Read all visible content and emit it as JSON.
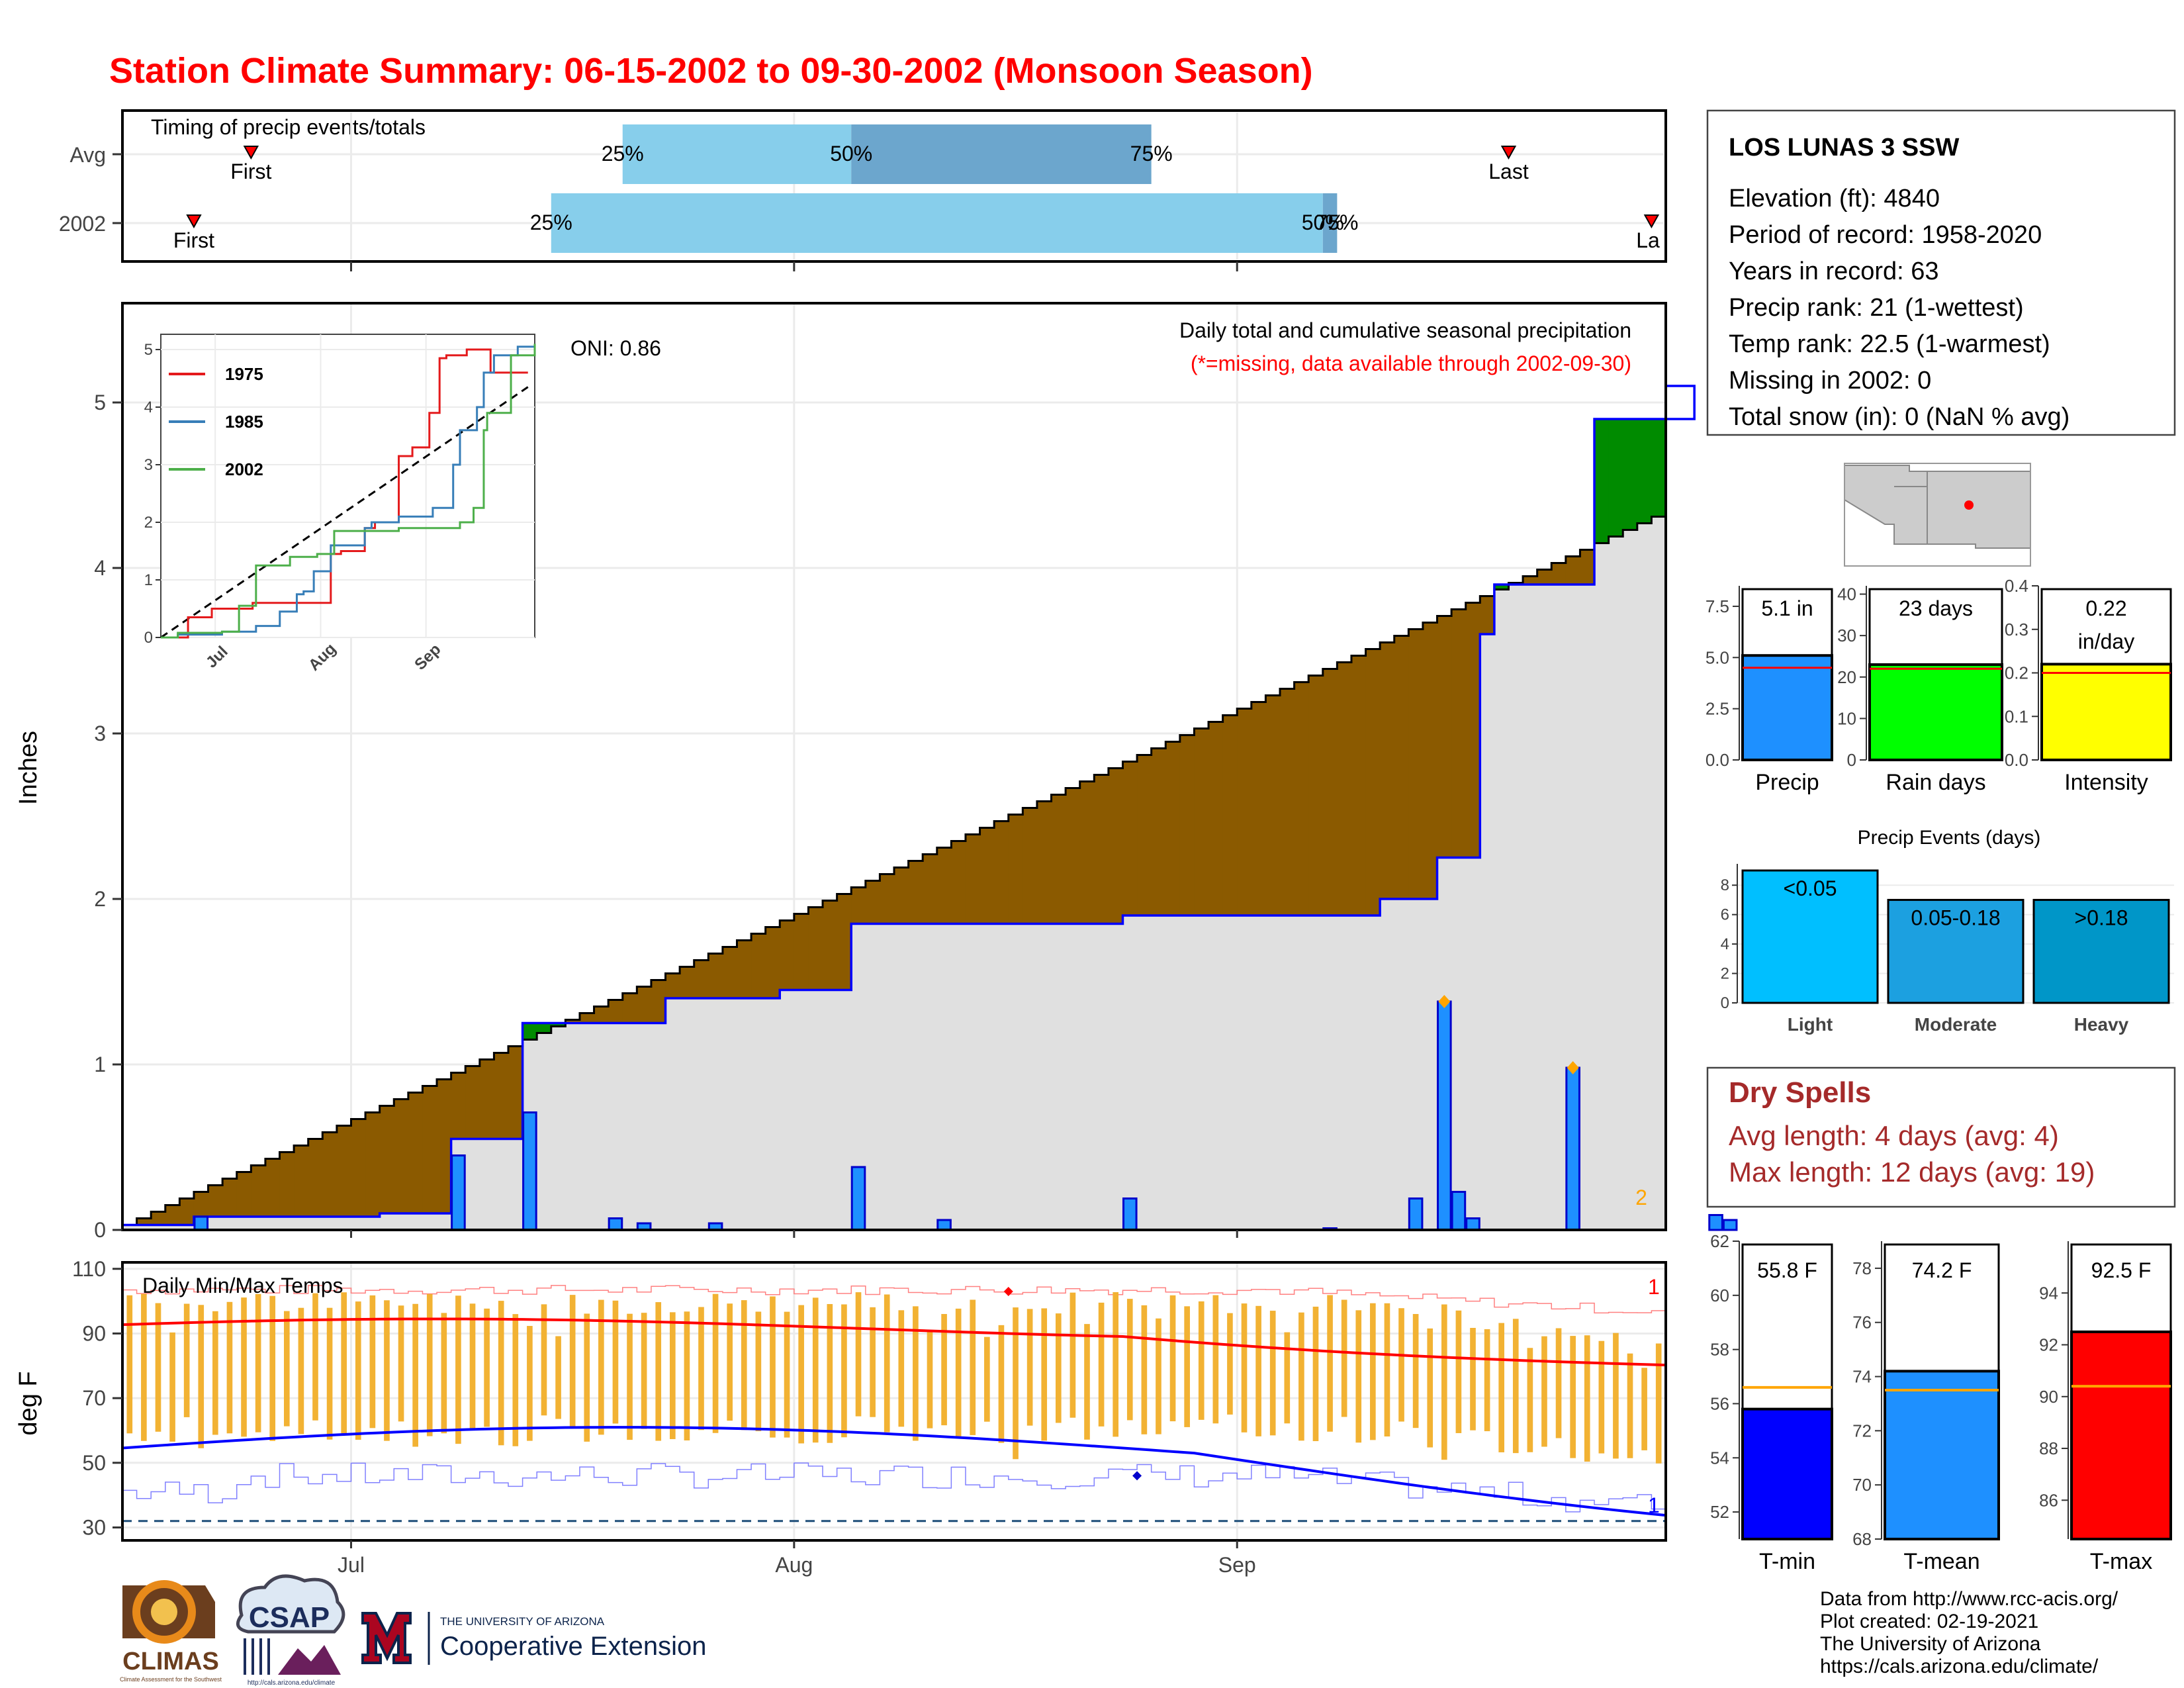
{
  "title": "Station Climate Summary: 06-15-2002 to 09-30-2002 (Monsoon Season)",
  "colors": {
    "title": "#ff0000",
    "precip_bar": "#1e90ff",
    "above": "#008b00",
    "below": "#8b5a00",
    "avg_fill": "#e0e0e0",
    "tmax": "#ff0000",
    "tmin": "#0000ff",
    "range_bar": "#f2b233",
    "dry": "#a52a2a"
  },
  "timing": {
    "label": "Timing of precip events/totals",
    "rows": [
      {
        "name": "Avg",
        "first_label": "First",
        "first_day": 9,
        "last_label": "Last",
        "last_day": 97,
        "q25_day": 35,
        "q50_day": 51,
        "q75_day": 72,
        "q25_label": "25%",
        "q50_label": "50%",
        "q75_label": "75%"
      },
      {
        "name": "2002",
        "first_label": "First",
        "first_day": 5,
        "last_label": "La",
        "last_day": 107,
        "q25_day": 30,
        "q50_day": 84,
        "q75_day": 85,
        "q25_label": "25%",
        "q50_label": "50%",
        "q75_label": "75%"
      }
    ]
  },
  "station": {
    "name": "LOS LUNAS 3 SSW",
    "lines": [
      "Elevation (ft): 4840",
      "Period of record: 1958-2020",
      "Years in record: 63",
      "Precip rank: 21 (1-wettest)",
      "Temp rank: 22.5 (1-warmest)",
      "Missing in 2002: 0",
      "Total snow (in): 0 (NaN % avg)"
    ]
  },
  "precip_panel": {
    "note1": "Daily total and cumulative seasonal precipitation",
    "note2": "(*=missing, data available through 2002-09-30)",
    "oni": "ONI: 0.86",
    "ylabel": "Inches",
    "y_ticks": [
      0,
      1,
      2,
      3,
      4,
      5
    ],
    "ylim": [
      0,
      5.6
    ],
    "corner_label": "2",
    "cum_avg_end": 4.35,
    "cum_2002_steps": [
      [
        0,
        0.03
      ],
      [
        5,
        0.08
      ],
      [
        18,
        0.1
      ],
      [
        23,
        0.55
      ],
      [
        28,
        1.25
      ],
      [
        38,
        1.4
      ],
      [
        46,
        1.45
      ],
      [
        51,
        1.85
      ],
      [
        70,
        1.9
      ],
      [
        88,
        2.0
      ],
      [
        92,
        2.25
      ],
      [
        95,
        3.6
      ],
      [
        96,
        3.9
      ],
      [
        103,
        4.9
      ],
      [
        110,
        5.1
      ]
    ],
    "daily_bars": [
      [
        5,
        0.08
      ],
      [
        23,
        0.45
      ],
      [
        28,
        0.71
      ],
      [
        34,
        0.07
      ],
      [
        36,
        0.04
      ],
      [
        41,
        0.04
      ],
      [
        51,
        0.38
      ],
      [
        57,
        0.06
      ],
      [
        70,
        0.19
      ],
      [
        84,
        0.01
      ],
      [
        90,
        0.19
      ],
      [
        92,
        1.38
      ],
      [
        93,
        0.23
      ],
      [
        94,
        0.07
      ],
      [
        101,
        0.98
      ],
      [
        111,
        0.09
      ],
      [
        112,
        0.06
      ]
    ],
    "flag_days": [
      92,
      101
    ],
    "x_ticks": [
      {
        "label": "Jul",
        "day": 16
      },
      {
        "label": "Aug",
        "day": 47
      },
      {
        "label": "Sep",
        "day": 78
      }
    ]
  },
  "inset": {
    "legend": [
      "1975",
      "1985",
      "2002"
    ],
    "colors": [
      "#e41a1c",
      "#377eb8",
      "#4daf4a"
    ],
    "y_ticks": [
      0,
      1,
      2,
      3,
      4,
      5
    ],
    "x_ticks": [
      "Jul",
      "Aug",
      "Sep"
    ],
    "avg_end": 4.35,
    "s1975": [
      [
        0,
        0
      ],
      [
        8,
        0.35
      ],
      [
        15,
        0.5
      ],
      [
        20,
        0.5
      ],
      [
        27,
        0.6
      ],
      [
        35,
        0.6
      ],
      [
        48,
        0.6
      ],
      [
        50,
        1.45
      ],
      [
        53,
        1.5
      ],
      [
        60,
        1.9
      ],
      [
        63,
        2.0
      ],
      [
        70,
        3.15
      ],
      [
        74,
        3.3
      ],
      [
        79,
        3.9
      ],
      [
        82,
        4.85
      ],
      [
        84,
        4.9
      ],
      [
        90,
        5.0
      ],
      [
        97,
        4.6
      ],
      [
        108,
        4.6
      ]
    ],
    "s1985": [
      [
        0,
        0
      ],
      [
        5,
        0.05
      ],
      [
        15,
        0.05
      ],
      [
        18,
        0.1
      ],
      [
        24,
        0.1
      ],
      [
        28,
        0.2
      ],
      [
        35,
        0.45
      ],
      [
        40,
        0.75
      ],
      [
        42,
        0.8
      ],
      [
        45,
        1.15
      ],
      [
        50,
        1.6
      ],
      [
        60,
        1.9
      ],
      [
        62,
        2.0
      ],
      [
        70,
        2.1
      ],
      [
        80,
        2.25
      ],
      [
        86,
        3.0
      ],
      [
        88,
        3.6
      ],
      [
        93,
        4.0
      ],
      [
        95,
        4.6
      ],
      [
        98,
        4.9
      ],
      [
        105,
        5.05
      ],
      [
        110,
        5.05
      ]
    ],
    "s2002": [
      [
        0,
        0
      ],
      [
        5,
        0.08
      ],
      [
        18,
        0.1
      ],
      [
        23,
        0.55
      ],
      [
        28,
        1.25
      ],
      [
        38,
        1.4
      ],
      [
        46,
        1.45
      ],
      [
        51,
        1.85
      ],
      [
        70,
        1.9
      ],
      [
        88,
        2.0
      ],
      [
        92,
        2.25
      ],
      [
        95,
        3.6
      ],
      [
        96,
        3.9
      ],
      [
        103,
        4.9
      ],
      [
        110,
        5.1
      ]
    ]
  },
  "temps": {
    "label": "Daily Min/Max Temps",
    "ylabel": "deg F",
    "y_ticks": [
      30,
      50,
      70,
      90,
      110
    ],
    "ylim": [
      26,
      112
    ],
    "top_flag": "1",
    "bottom_flag": "1",
    "freeze_line": 32
  },
  "bar_panels": {
    "precip": {
      "label": "Precip",
      "value_label": "5.1 in",
      "value": 5.1,
      "avg": 4.5,
      "ticks": [
        "0.0",
        "2.5",
        "5.0",
        "7.5"
      ],
      "max": 8.5,
      "color": "#1e90ff"
    },
    "rain_days": {
      "label": "Rain days",
      "value_label": "23 days",
      "value": 23,
      "avg": 22,
      "ticks": [
        "0",
        "10",
        "20",
        "30",
        "40"
      ],
      "max": 42,
      "color": "#00ff00"
    },
    "intensity": {
      "label": "Intensity",
      "value_label": "0.22",
      "value_label2": "in/day",
      "value": 0.22,
      "avg": 0.2,
      "ticks": [
        "0.0",
        "0.1",
        "0.2",
        "0.3",
        "0.4"
      ],
      "max": 0.4,
      "color": "#ffff00"
    }
  },
  "events": {
    "title": "Precip Events (days)",
    "categories": [
      "Light",
      "Moderate",
      "Heavy"
    ],
    "value_labels": [
      "<0.05",
      "0.05-0.18",
      ">0.18"
    ],
    "values": [
      9,
      7,
      7
    ],
    "ticks": [
      "0",
      "2",
      "4",
      "6",
      "8"
    ],
    "colors": [
      "#00bfff",
      "#1ca0e0",
      "#0096c8"
    ]
  },
  "dry_spells": {
    "title": "Dry Spells",
    "line1": "Avg length: 4 days (avg: 4)",
    "line2": "Max length: 12 days (avg: 19)"
  },
  "temp_bars": {
    "tmin": {
      "label": "T-min",
      "value_label": "55.8 F",
      "value": 55.8,
      "avg": 56.6,
      "ticks": [
        "52",
        "54",
        "56",
        "58",
        "60",
        "62"
      ],
      "min": 51,
      "max": 62,
      "color": "#0000ff"
    },
    "tmean": {
      "label": "T-mean",
      "value_label": "74.2 F",
      "value": 74.2,
      "avg": 73.5,
      "ticks": [
        "68",
        "70",
        "72",
        "74",
        "76",
        "78"
      ],
      "min": 68,
      "max": 79,
      "color": "#1e90ff"
    },
    "tmax": {
      "label": "T-max",
      "value_label": "92.5 F",
      "value": 92.5,
      "avg": 90.4,
      "ticks": [
        "86",
        "88",
        "90",
        "92",
        "94"
      ],
      "min": 84.5,
      "max": 96,
      "color": "#ff0000"
    }
  },
  "footer": {
    "lines": [
      "Data from http://www.rcc-acis.org/",
      "Plot created: 02-19-2021",
      "The University of Arizona",
      "https://cals.arizona.edu/climate/"
    ],
    "climas": "CLIMAS",
    "climas_sub": "Climate Assessment for the Southwest",
    "csap": "CSAP",
    "csap_url": "http://cals.arizona.edu/climate",
    "ua_top": "THE UNIVERSITY OF ARIZONA",
    "ua_bottom": "Cooperative Extension"
  }
}
